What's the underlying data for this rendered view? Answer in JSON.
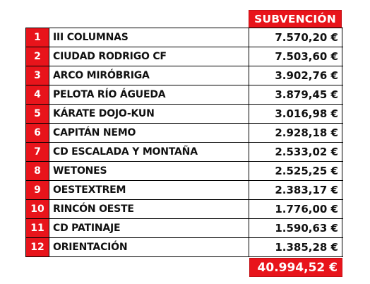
{
  "header": {
    "amount_label": "SUBVENCIÓN"
  },
  "rows": [
    {
      "rank": "1",
      "name": "III COLUMNAS",
      "amount": "7.570,20 €"
    },
    {
      "rank": "2",
      "name": "CIUDAD RODRIGO CF",
      "amount": "7.503,60 €"
    },
    {
      "rank": "3",
      "name": "ARCO MIRÓBRIGA",
      "amount": "3.902,76 €"
    },
    {
      "rank": "4",
      "name": "PELOTA RÍO ÁGUEDA",
      "amount": "3.879,45 €"
    },
    {
      "rank": "5",
      "name": "KÁRATE DOJO-KUN",
      "amount": "3.016,98 €"
    },
    {
      "rank": "6",
      "name": "CAPITÁN NEMO",
      "amount": "2.928,18 €"
    },
    {
      "rank": "7",
      "name": "CD ESCALADA Y MONTAÑA",
      "amount": "2.533,02 €"
    },
    {
      "rank": "8",
      "name": "WETONES",
      "amount": "2.525,25 €"
    },
    {
      "rank": "9",
      "name": "OESTEXTREM",
      "amount": "2.383,17 €"
    },
    {
      "rank": "10",
      "name": "RINCÓN OESTE",
      "amount": "1.776,00 €"
    },
    {
      "rank": "11",
      "name": "CD PATINAJE",
      "amount": "1.590,63 €"
    },
    {
      "rank": "12",
      "name": "ORIENTACIÓN",
      "amount": "1.385,28 €"
    }
  ],
  "total": {
    "amount": "40.994,52 €"
  },
  "colors": {
    "accent": "#e8141b",
    "text": "#111111"
  }
}
